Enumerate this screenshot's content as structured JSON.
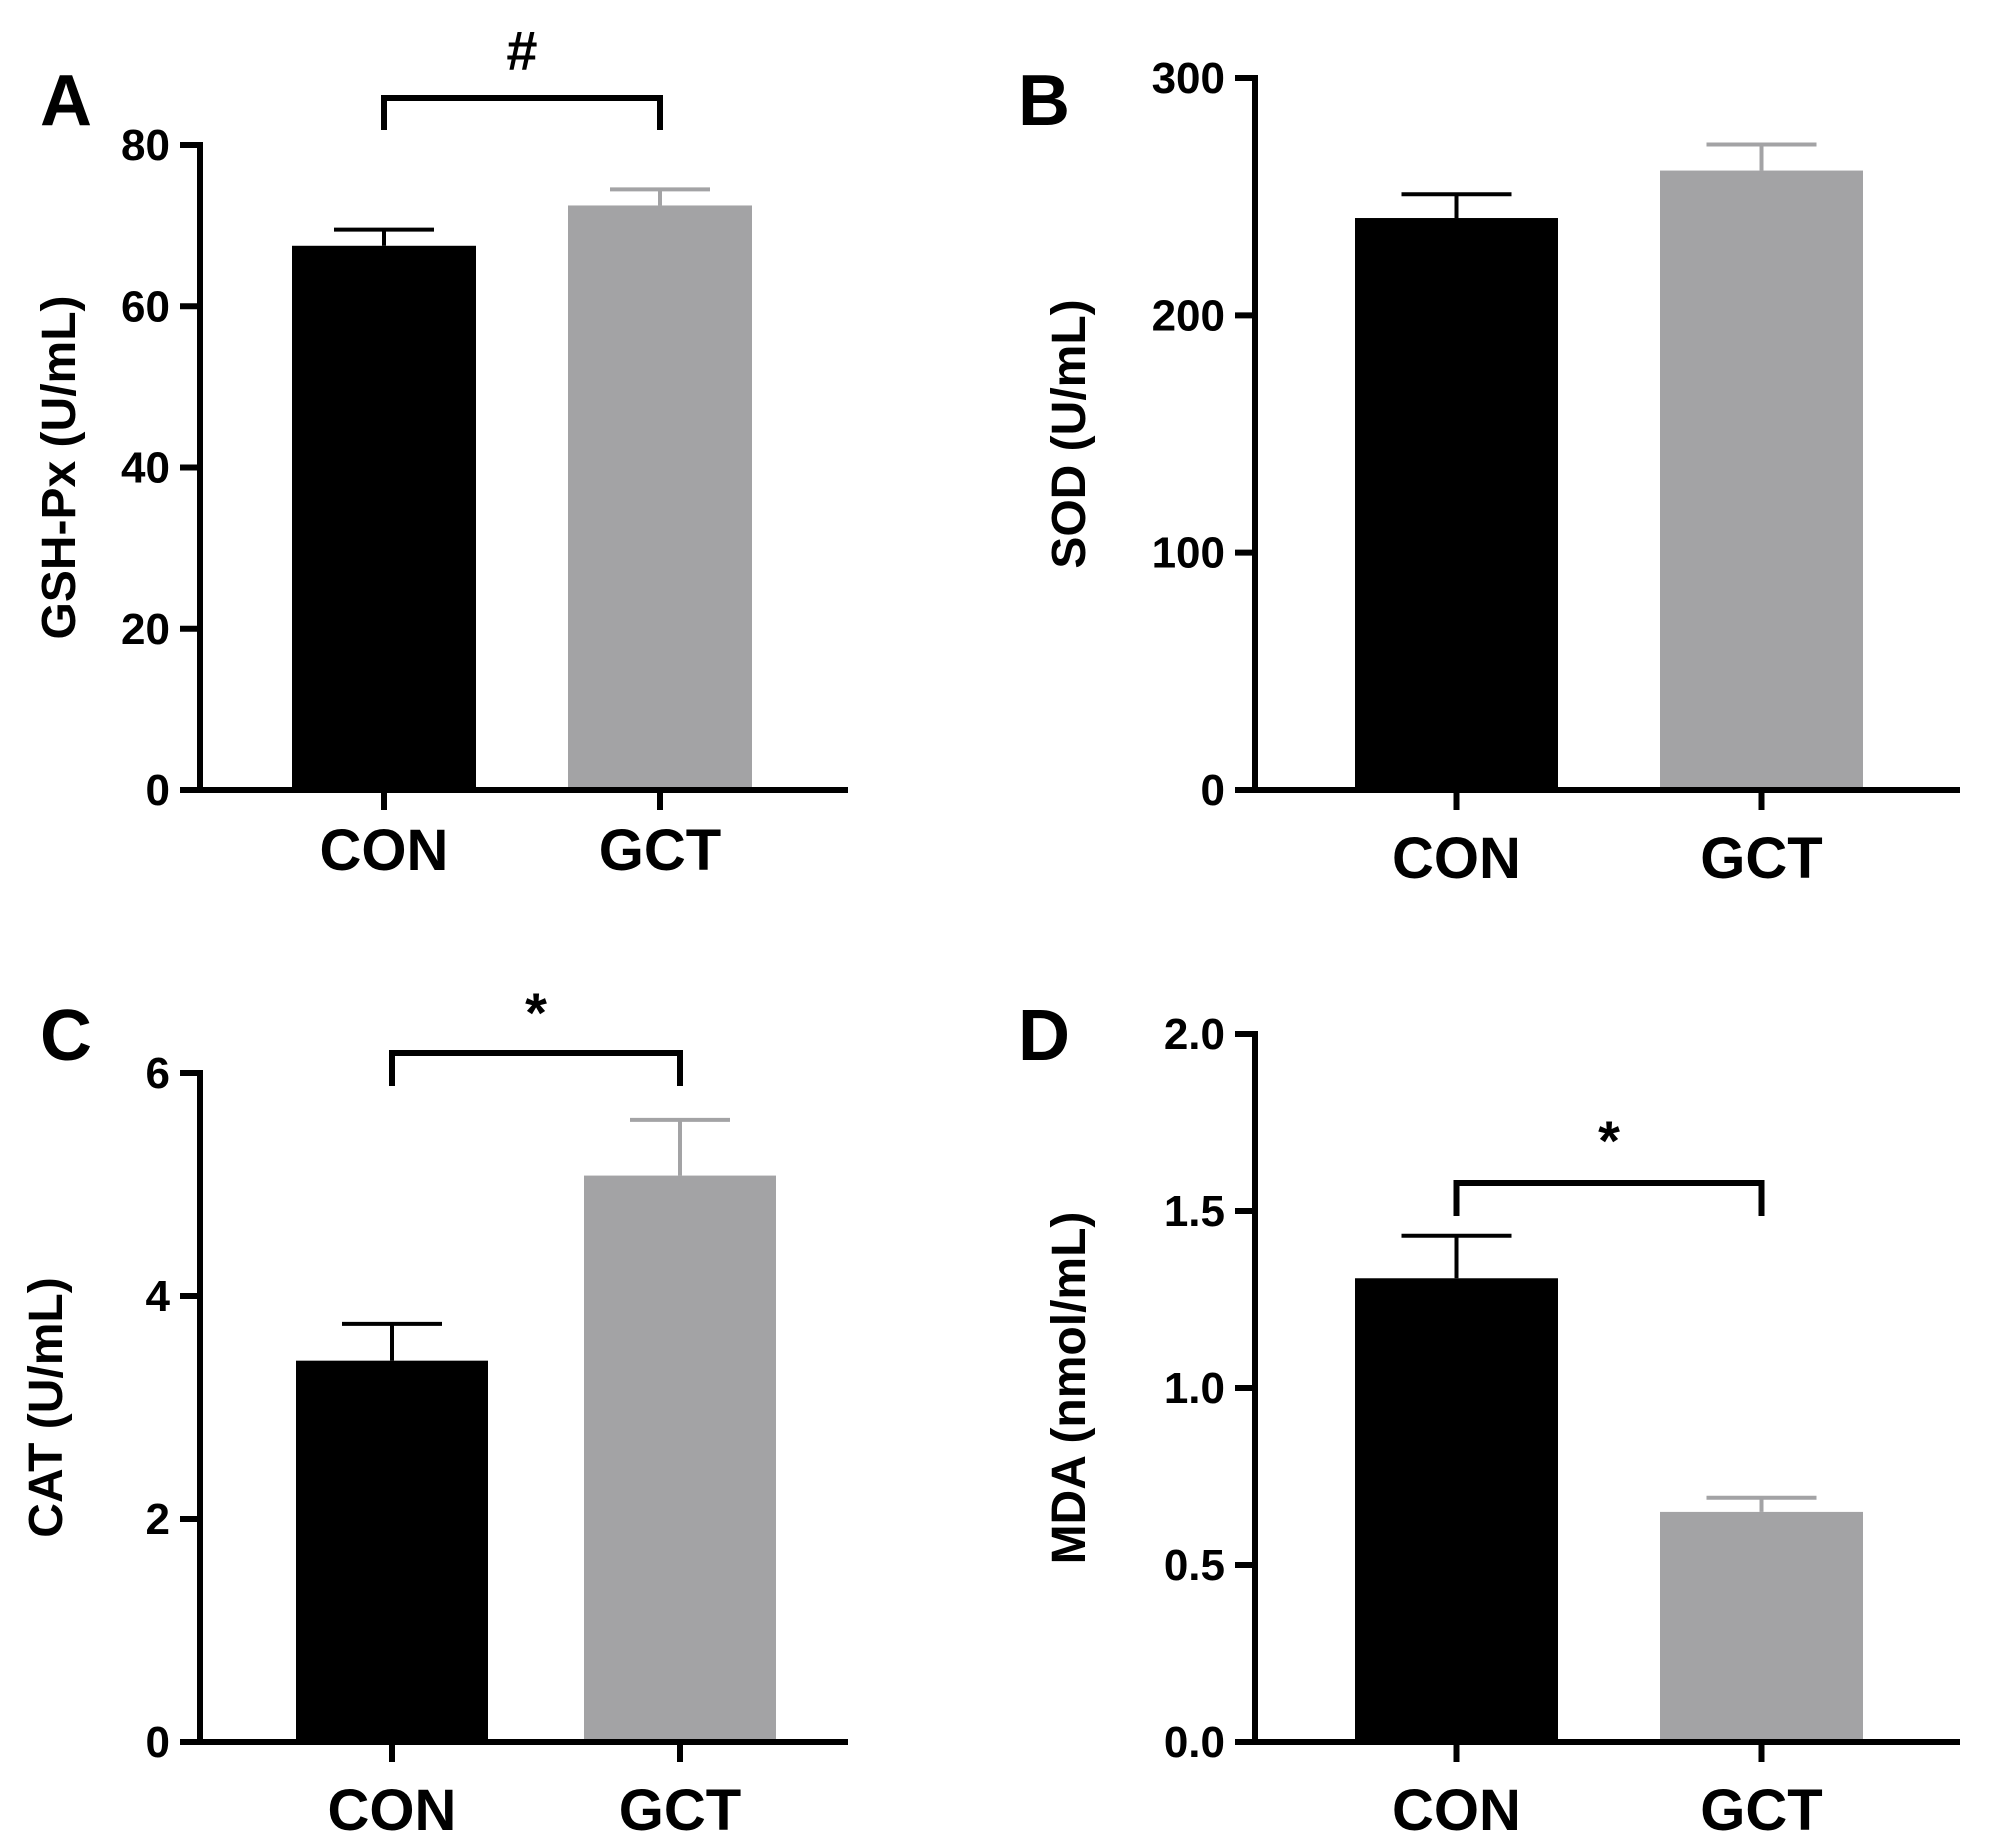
{
  "chart_data": [
    {
      "type": "bar",
      "panel": "A",
      "categories": [
        "CON",
        "GCT"
      ],
      "values": [
        67.5,
        72.5
      ],
      "errors": [
        2.0,
        2.0
      ],
      "ylabel": "GSH-Px (U/mL)",
      "ylim": [
        0,
        80
      ],
      "yticks": [
        0,
        20,
        40,
        60,
        80
      ],
      "ytick_labels": [
        "0",
        "20",
        "40",
        "60",
        "80"
      ],
      "significance": {
        "between": [
          "CON",
          "GCT"
        ],
        "label": "#"
      },
      "colors": [
        "#000000",
        "#a3a3a5"
      ]
    },
    {
      "type": "bar",
      "panel": "B",
      "categories": [
        "CON",
        "GCT"
      ],
      "values": [
        241,
        261
      ],
      "errors": [
        10,
        11
      ],
      "ylabel": "SOD (U/mL)",
      "ylim": [
        0,
        300
      ],
      "yticks": [
        0,
        100,
        200,
        300
      ],
      "ytick_labels": [
        "0",
        "100",
        "200",
        "300"
      ],
      "significance": null,
      "colors": [
        "#000000",
        "#a3a3a5"
      ]
    },
    {
      "type": "bar",
      "panel": "C",
      "categories": [
        "CON",
        "GCT"
      ],
      "values": [
        3.42,
        5.08
      ],
      "errors": [
        0.33,
        0.5
      ],
      "ylabel": "CAT (U/mL)",
      "ylim": [
        0,
        6
      ],
      "yticks": [
        0,
        2,
        4,
        6
      ],
      "ytick_labels": [
        "0",
        "2",
        "4",
        "6"
      ],
      "significance": {
        "between": [
          "CON",
          "GCT"
        ],
        "label": "*"
      },
      "colors": [
        "#000000",
        "#a3a3a5"
      ]
    },
    {
      "type": "bar",
      "panel": "D",
      "categories": [
        "CON",
        "GCT"
      ],
      "values": [
        1.31,
        0.65
      ],
      "errors": [
        0.12,
        0.04
      ],
      "ylabel": "MDA (nmol/mL)",
      "ylim": [
        0,
        2.0
      ],
      "yticks": [
        0,
        0.5,
        1.0,
        1.5,
        2.0
      ],
      "ytick_labels": [
        "0.0",
        "0.5",
        "1.0",
        "1.5",
        "2.0"
      ],
      "significance": {
        "between": [
          "CON",
          "GCT"
        ],
        "label": "*"
      },
      "colors": [
        "#000000",
        "#a3a3a5"
      ]
    }
  ]
}
